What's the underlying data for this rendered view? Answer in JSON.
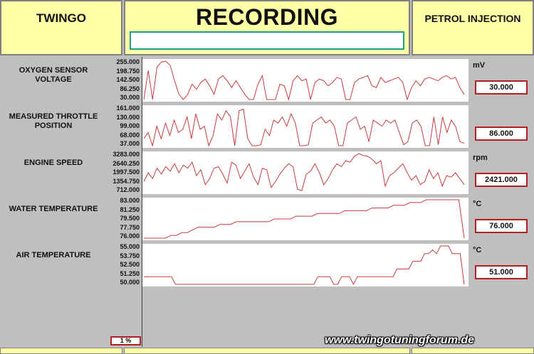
{
  "header": {
    "left_title": "TWINGO",
    "center_title": "RECORDING",
    "right_title": "PETROL INJECTION"
  },
  "progress_label": "1 %",
  "watermark": "www.twingotuningforum.de",
  "colors": {
    "header_bg": "#ffffa8",
    "trace": "#c83c3c",
    "value_border": "#b02020"
  },
  "chart_data": [
    {
      "type": "line",
      "title": "OXYGEN SENSOR VOLTAGE",
      "ylabel": "mV",
      "y_ticks": [
        "255.000",
        "198.750",
        "142.500",
        "86.250",
        "30.000"
      ],
      "ylim": [
        30,
        255
      ],
      "current_value": "30.000",
      "series": [
        {
          "values": [
            30,
            200,
            30,
            220,
            250,
            255,
            230,
            140,
            60,
            30,
            60,
            120,
            90,
            130,
            150,
            110,
            60,
            150,
            170,
            140,
            100,
            140,
            100,
            60,
            30,
            30,
            120,
            170,
            30,
            30,
            30,
            120,
            110,
            30,
            140,
            170,
            140,
            150,
            30,
            130,
            150,
            140,
            110,
            130,
            160,
            150,
            30,
            30,
            130,
            150,
            160,
            170,
            110,
            100,
            160,
            130,
            140,
            150,
            160,
            130,
            30,
            100,
            140,
            110,
            150,
            160,
            150,
            140,
            160,
            170,
            150,
            160,
            100,
            60
          ]
        }
      ]
    },
    {
      "type": "line",
      "title": "MEASURED THROTTLE POSITION",
      "y_ticks": [
        "161.000",
        "130.000",
        "99.000",
        "68.000",
        "37.000"
      ],
      "ylim": [
        37,
        161
      ],
      "current_value": "86.000",
      "series": [
        {
          "values": [
            60,
            80,
            37,
            100,
            60,
            110,
            70,
            120,
            80,
            90,
            130,
            60,
            140,
            90,
            100,
            37,
            70,
            140,
            120,
            150,
            130,
            37,
            150,
            155,
            60,
            37,
            37,
            40,
            90,
            70,
            120,
            110,
            130,
            100,
            140,
            110,
            37,
            37,
            40,
            110,
            120,
            130,
            110,
            120,
            100,
            37,
            37,
            110,
            120,
            130,
            90,
            100,
            50,
            120,
            110,
            100,
            120,
            110,
            120,
            80,
            40,
            50,
            110,
            120,
            100,
            37,
            37,
            130,
            40,
            130,
            80,
            120,
            100,
            50,
            45
          ]
        }
      ]
    },
    {
      "type": "line",
      "title": "ENGINE SPEED",
      "ylabel": "rpm",
      "y_ticks": [
        "3283.000",
        "2640.250",
        "1997.500",
        "1354.750",
        "712.000"
      ],
      "ylim": [
        712,
        3283
      ],
      "current_value": "2421.000",
      "series": [
        {
          "values": [
            1400,
            2000,
            1600,
            2300,
            1900,
            2400,
            2100,
            2600,
            2000,
            2500,
            2300,
            2700,
            1800,
            2200,
            1200,
            1600,
            2300,
            2400,
            1900,
            1300,
            2700,
            2500,
            1600,
            2100,
            2600,
            1700,
            1200,
            2300,
            2200,
            1000,
            1400,
            1900,
            2300,
            2600,
            2400,
            900,
            800,
            1900,
            2100,
            2600,
            2000,
            1200,
            1600,
            2200,
            2600,
            2400,
            2800,
            2700,
            3100,
            3283,
            3150,
            3100,
            2900,
            2600,
            2800,
            1100,
            1800,
            2000,
            2300,
            2600,
            2000,
            1500,
            1800,
            1200,
            1400,
            2200,
            1600,
            2000,
            1100,
            1800,
            1700,
            2000,
            1600,
            1200
          ]
        }
      ]
    },
    {
      "type": "line",
      "title": "WATER TEMPERATURE",
      "ylabel": "°C",
      "y_ticks": [
        "83.000",
        "81.250",
        "79.500",
        "77.750",
        "76.000"
      ],
      "ylim": [
        76,
        83
      ],
      "current_value": "76.000",
      "series": [
        {
          "values": [
            76,
            76,
            76,
            76,
            76,
            76.5,
            76.5,
            77,
            77,
            77.5,
            78,
            78,
            78,
            78,
            78.5,
            78.5,
            78.5,
            79,
            79,
            79,
            79,
            79,
            79,
            79,
            79.5,
            79.5,
            79.5,
            79.5,
            80,
            80,
            80,
            80,
            80.5,
            80.5,
            80.5,
            80.5,
            80.5,
            81,
            81,
            81,
            81,
            81,
            81.5,
            81.5,
            81.5,
            81.5,
            82,
            82,
            82,
            82.5,
            82.5,
            82.5,
            83,
            83,
            83,
            83,
            83,
            83,
            83,
            76
          ]
        }
      ]
    },
    {
      "type": "line",
      "title": "AIR TEMPERATURE",
      "ylabel": "°C",
      "y_ticks": [
        "55.000",
        "53.750",
        "52.500",
        "51.250",
        "50.000"
      ],
      "ylim": [
        50,
        55
      ],
      "current_value": "51.000",
      "series": [
        {
          "values": [
            51,
            51,
            51,
            51,
            51,
            51,
            51,
            51,
            50,
            50,
            50,
            50,
            50,
            50,
            50,
            50,
            50,
            50,
            50,
            50,
            50,
            50,
            50,
            50,
            50,
            50,
            50,
            50,
            50,
            50,
            50,
            50,
            50,
            50,
            50,
            50,
            50,
            50,
            50,
            50,
            50,
            50,
            50,
            50,
            51,
            51,
            51,
            51,
            50,
            50,
            51,
            51,
            51,
            50,
            51,
            51,
            51,
            51,
            51,
            51,
            51,
            51,
            51,
            51,
            52,
            52,
            52,
            52,
            53,
            53,
            53,
            54,
            54,
            54.5,
            54,
            55,
            55,
            55,
            54,
            54,
            54,
            50
          ]
        }
      ]
    }
  ]
}
